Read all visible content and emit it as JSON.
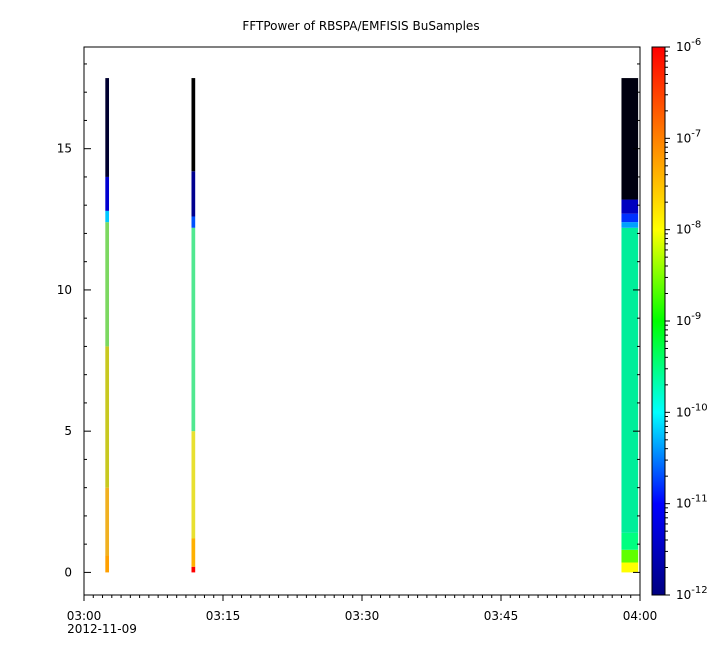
{
  "chart_data": {
    "type": "heatmap",
    "title": "FFTPower of RBSPA/EMFISIS  BuSamples",
    "xlabel": "",
    "ylabel": "",
    "x_ticks": [
      "03:00",
      "03:15",
      "03:30",
      "03:45",
      "04:00"
    ],
    "x_date_label": "2012-11-09",
    "xlim_minutes": [
      0,
      60
    ],
    "y_ticks": [
      "0",
      "5",
      "10",
      "15"
    ],
    "ylim": [
      -0.8,
      18.6
    ],
    "colorbar": {
      "scale": "log",
      "range": [
        1e-12,
        1e-06
      ],
      "tick_labels": [
        {
          "base": "10",
          "exp": "-6"
        },
        {
          "base": "10",
          "exp": "-7"
        },
        {
          "base": "10",
          "exp": "-8"
        },
        {
          "base": "10",
          "exp": "-9"
        },
        {
          "base": "10",
          "exp": "-10"
        },
        {
          "base": "10",
          "exp": "-11"
        },
        {
          "base": "10",
          "exp": "-12"
        }
      ],
      "colors": [
        "#000080",
        "#0000ff",
        "#00ffff",
        "#00ff00",
        "#ffff00",
        "#ff8000",
        "#ff0000"
      ]
    },
    "series": [
      {
        "x_start_min": 2.3,
        "x_end_min": 2.7,
        "y_max": 17.5,
        "bands": [
          {
            "y0": 0,
            "y1": 0.6,
            "color": "#ffa000"
          },
          {
            "y0": 0.6,
            "y1": 3,
            "color": "#f0b020"
          },
          {
            "y0": 3,
            "y1": 8,
            "color": "#c8c820"
          },
          {
            "y0": 8,
            "y1": 12.4,
            "color": "#7cd860"
          },
          {
            "y0": 12.4,
            "y1": 12.8,
            "color": "#00c8ff"
          },
          {
            "y0": 12.8,
            "y1": 14.0,
            "color": "#0000d0"
          },
          {
            "y0": 14.0,
            "y1": 17.5,
            "color": "#000030"
          }
        ]
      },
      {
        "x_start_min": 11.6,
        "x_end_min": 12.0,
        "y_max": 17.5,
        "bands": [
          {
            "y0": 0,
            "y1": 0.2,
            "color": "#ff0000"
          },
          {
            "y0": 0.2,
            "y1": 1.2,
            "color": "#ffb000"
          },
          {
            "y0": 1.2,
            "y1": 5,
            "color": "#e8e030"
          },
          {
            "y0": 5,
            "y1": 12.2,
            "color": "#50e890"
          },
          {
            "y0": 12.2,
            "y1": 12.6,
            "color": "#0050ff"
          },
          {
            "y0": 12.6,
            "y1": 14.2,
            "color": "#000090"
          },
          {
            "y0": 14.2,
            "y1": 17.5,
            "color": "#000000"
          }
        ]
      },
      {
        "x_start_min": 58.0,
        "x_end_min": 59.8,
        "y_max": 17.5,
        "bands": [
          {
            "y0": 0,
            "y1": 0.35,
            "color": "#ffff00"
          },
          {
            "y0": 0.35,
            "y1": 0.8,
            "color": "#60ff00"
          },
          {
            "y0": 0.8,
            "y1": 1.4,
            "color": "#00ff80"
          },
          {
            "y0": 1.4,
            "y1": 12.2,
            "color": "#00ee9a"
          },
          {
            "y0": 12.2,
            "y1": 12.4,
            "color": "#00a0ff"
          },
          {
            "y0": 12.4,
            "y1": 12.7,
            "color": "#0030ff"
          },
          {
            "y0": 12.7,
            "y1": 13.2,
            "color": "#0000c0"
          },
          {
            "y0": 13.2,
            "y1": 17.5,
            "color": "#000010"
          }
        ]
      }
    ]
  }
}
